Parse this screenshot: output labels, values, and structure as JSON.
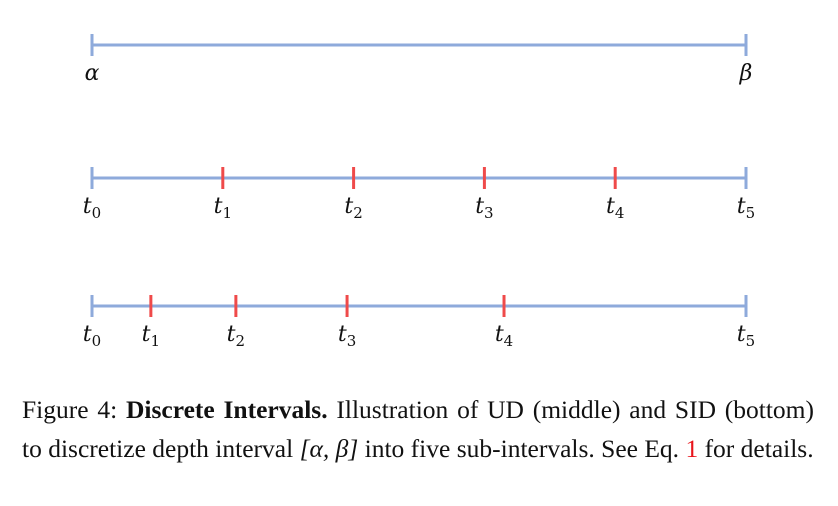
{
  "figure": {
    "rows": [
      {
        "name": "interval",
        "ticks": [
          {
            "label": "α",
            "sub": "",
            "pos": 0.0,
            "kind": "end"
          },
          {
            "label": "β",
            "sub": "",
            "pos": 1.0,
            "kind": "end"
          }
        ]
      },
      {
        "name": "ud",
        "ticks": [
          {
            "label": "t",
            "sub": "0",
            "pos": 0.0,
            "kind": "end"
          },
          {
            "label": "t",
            "sub": "1",
            "pos": 0.2,
            "kind": "inner"
          },
          {
            "label": "t",
            "sub": "2",
            "pos": 0.4,
            "kind": "inner"
          },
          {
            "label": "t",
            "sub": "3",
            "pos": 0.6,
            "kind": "inner"
          },
          {
            "label": "t",
            "sub": "4",
            "pos": 0.8,
            "kind": "inner"
          },
          {
            "label": "t",
            "sub": "5",
            "pos": 1.0,
            "kind": "end"
          }
        ]
      },
      {
        "name": "sid",
        "ticks": [
          {
            "label": "t",
            "sub": "0",
            "pos": 0.0,
            "kind": "end"
          },
          {
            "label": "t",
            "sub": "1",
            "pos": 0.09,
            "kind": "inner"
          },
          {
            "label": "t",
            "sub": "2",
            "pos": 0.22,
            "kind": "inner"
          },
          {
            "label": "t",
            "sub": "3",
            "pos": 0.39,
            "kind": "inner"
          },
          {
            "label": "t",
            "sub": "4",
            "pos": 0.63,
            "kind": "inner"
          },
          {
            "label": "t",
            "sub": "5",
            "pos": 1.0,
            "kind": "end"
          }
        ]
      }
    ],
    "colors": {
      "axis": "#8eaadb",
      "end_tick": "#8eaadb",
      "inner_tick": "#ef4a4a"
    }
  },
  "caption": {
    "label": "Figure 4:",
    "title": "Discrete Intervals.",
    "text_1": "Illustration of UD (middle) and SID (bottom) to discretize depth interval",
    "interval": "[α, β]",
    "text_2": "into five sub-intervals. See Eq.",
    "eq_ref": "1",
    "text_3": "for details."
  }
}
